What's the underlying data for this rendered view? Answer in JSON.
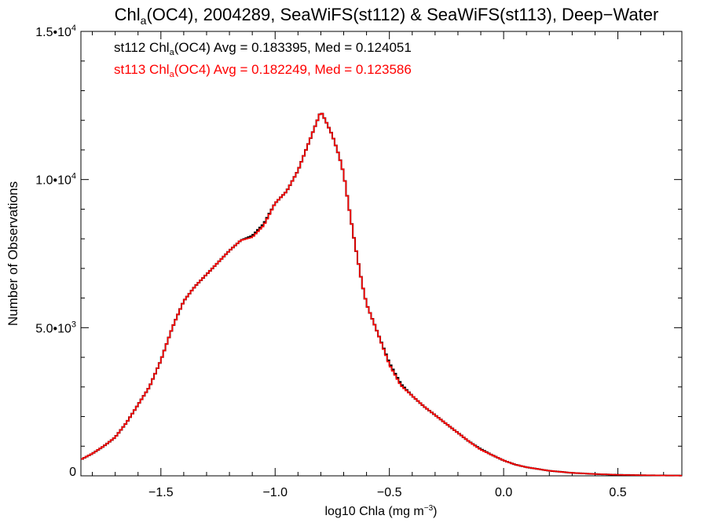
{
  "chart_data": {
    "type": "line",
    "title_parts": {
      "pre": "Chl",
      "sub": "a",
      "post": "(OC4), 2004289, SeaWiFS(st112) & SeaWiFS(st113), Deep−Water"
    },
    "xlabel_parts": {
      "pre": "log10 Chla (mg m",
      "sup": "−3",
      "post": ")"
    },
    "ylabel": "Number of Observations",
    "xlim": [
      -1.85,
      0.78
    ],
    "ylim": [
      0,
      15000
    ],
    "xticks": [
      -1.5,
      -1.0,
      -0.5,
      0.0,
      0.5
    ],
    "xtick_labels": [
      "−1.5",
      "−1.0",
      "−0.5",
      "0.0",
      "0.5"
    ],
    "yticks": [
      0,
      5000,
      10000,
      15000
    ],
    "ytick_labels": [
      {
        "base": "0",
        "exp": ""
      },
      {
        "base": "5.0•10",
        "exp": "3"
      },
      {
        "base": "1.0•10",
        "exp": "4"
      },
      {
        "base": "1.5•10",
        "exp": "4"
      }
    ],
    "annotations": [
      {
        "pre": "st112 Chl",
        "sub": "a",
        "post": "(OC4) Avg = 0.183395, Med = 0.124051",
        "color": "#000000"
      },
      {
        "pre": "st113 Chl",
        "sub": "a",
        "post": "(OC4) Avg = 0.182249, Med = 0.123586",
        "color": "#ff0000"
      }
    ],
    "series": [
      {
        "color": "#000000",
        "x": [
          -1.85,
          -1.8,
          -1.75,
          -1.7,
          -1.65,
          -1.6,
          -1.55,
          -1.5,
          -1.45,
          -1.4,
          -1.35,
          -1.3,
          -1.25,
          -1.2,
          -1.15,
          -1.1,
          -1.05,
          -1.0,
          -0.95,
          -0.9,
          -0.85,
          -0.82,
          -0.8,
          -0.78,
          -0.75,
          -0.72,
          -0.7,
          -0.68,
          -0.65,
          -0.62,
          -0.6,
          -0.55,
          -0.5,
          -0.45,
          -0.4,
          -0.35,
          -0.3,
          -0.25,
          -0.2,
          -0.15,
          -0.1,
          -0.05,
          0.0,
          0.05,
          0.1,
          0.2,
          0.3,
          0.4,
          0.5,
          0.6,
          0.7,
          0.78
        ],
        "y": [
          550,
          750,
          1000,
          1300,
          1800,
          2400,
          3000,
          3900,
          5000,
          5900,
          6400,
          6800,
          7200,
          7600,
          7950,
          8100,
          8500,
          9200,
          9600,
          10300,
          11300,
          11900,
          12300,
          12000,
          11500,
          10800,
          10200,
          9200,
          7800,
          6500,
          5800,
          4800,
          3800,
          3100,
          2700,
          2350,
          2050,
          1750,
          1450,
          1150,
          900,
          700,
          520,
          380,
          290,
          170,
          100,
          60,
          35,
          20,
          12,
          8
        ]
      },
      {
        "color": "#ff0000",
        "x": [
          -1.85,
          -1.8,
          -1.75,
          -1.7,
          -1.65,
          -1.6,
          -1.55,
          -1.5,
          -1.45,
          -1.4,
          -1.35,
          -1.3,
          -1.25,
          -1.2,
          -1.15,
          -1.1,
          -1.05,
          -1.0,
          -0.95,
          -0.9,
          -0.85,
          -0.82,
          -0.8,
          -0.78,
          -0.75,
          -0.72,
          -0.7,
          -0.68,
          -0.65,
          -0.62,
          -0.6,
          -0.55,
          -0.5,
          -0.45,
          -0.4,
          -0.35,
          -0.3,
          -0.25,
          -0.2,
          -0.15,
          -0.1,
          -0.05,
          0.0,
          0.05,
          0.1,
          0.2,
          0.3,
          0.4,
          0.5,
          0.6,
          0.7,
          0.78
        ],
        "y": [
          550,
          750,
          1000,
          1300,
          1800,
          2400,
          3000,
          3900,
          5000,
          5900,
          6400,
          6800,
          7200,
          7600,
          7950,
          8050,
          8450,
          9200,
          9600,
          10300,
          11300,
          11900,
          12300,
          12000,
          11500,
          10800,
          10200,
          9200,
          7800,
          6500,
          5800,
          4800,
          3750,
          3050,
          2700,
          2350,
          2050,
          1750,
          1450,
          1150,
          880,
          700,
          520,
          380,
          290,
          170,
          100,
          60,
          35,
          20,
          12,
          8
        ]
      }
    ]
  }
}
